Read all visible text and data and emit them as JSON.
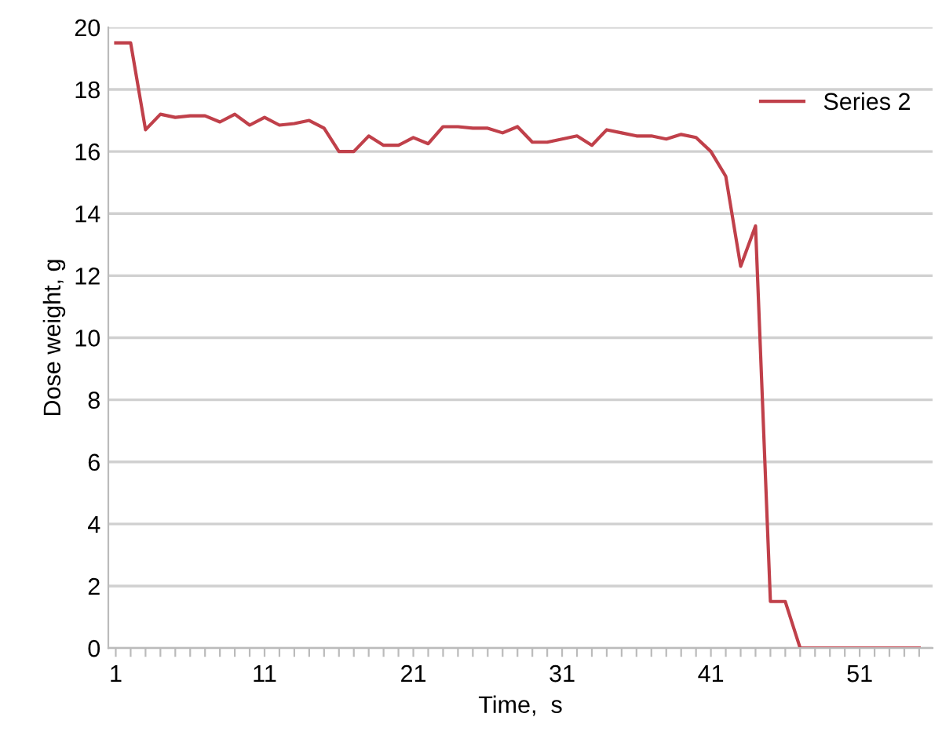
{
  "chart_data": {
    "type": "line",
    "xlabel": "Time,  s",
    "ylabel": "Dose weight, g",
    "categories": [
      "1",
      null,
      null,
      null,
      null,
      null,
      null,
      null,
      null,
      null,
      "11",
      null,
      null,
      null,
      null,
      null,
      null,
      null,
      null,
      null,
      "21",
      null,
      null,
      null,
      null,
      null,
      null,
      null,
      null,
      null,
      "31",
      null,
      null,
      null,
      null,
      null,
      null,
      null,
      null,
      null,
      "41",
      null,
      null,
      null,
      null,
      null,
      null,
      null,
      null,
      null,
      "51",
      null,
      null,
      null,
      null
    ],
    "series": [
      {
        "name": "Series 2",
        "color": "#c0404a",
        "values": [
          19.5,
          19.5,
          16.7,
          17.2,
          17.1,
          17.15,
          17.15,
          16.95,
          17.2,
          16.85,
          17.1,
          16.85,
          16.9,
          17.0,
          16.75,
          16.0,
          16.0,
          16.5,
          16.2,
          16.2,
          16.45,
          16.25,
          16.8,
          16.8,
          16.75,
          16.75,
          16.6,
          16.8,
          16.3,
          16.3,
          16.4,
          16.5,
          16.2,
          16.7,
          16.6,
          16.5,
          16.5,
          16.4,
          16.55,
          16.45,
          16.0,
          15.2,
          12.3,
          13.6,
          1.5,
          1.5,
          0,
          0,
          0,
          0,
          0,
          0,
          0,
          0,
          0
        ]
      }
    ],
    "ylim": [
      0,
      20
    ],
    "yticks": [
      0,
      2,
      4,
      6,
      8,
      10,
      12,
      14,
      16,
      18,
      20
    ],
    "grid": "y",
    "legend": "top right",
    "marker": "none",
    "line_style": "solid"
  }
}
